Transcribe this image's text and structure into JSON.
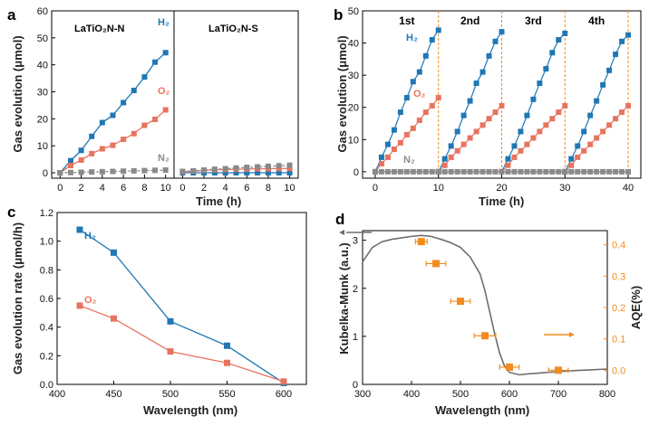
{
  "chart_data": [
    {
      "panel": "a",
      "type": "scatter",
      "xlabel": "Time (h)",
      "ylabel": "Gas evolution (μmol)",
      "ylim": [
        -2,
        60
      ],
      "yticks": [
        "0",
        "10",
        "20",
        "30",
        "40",
        "50",
        "60"
      ],
      "subpanels": [
        {
          "title": "LaTiO₂N-N",
          "title_color": "#e8735f",
          "xlim": [
            -0.8,
            10.8
          ],
          "xticks": [
            "0",
            "2",
            "4",
            "6",
            "8",
            "10"
          ],
          "series": [
            {
              "name": "H₂",
              "color": "#1f77b4",
              "x": [
                0,
                1,
                2,
                3,
                4,
                5,
                6,
                7,
                8,
                9,
                10
              ],
              "y": [
                0,
                4.5,
                8.3,
                13.5,
                18.6,
                21.3,
                26,
                30.5,
                35.5,
                41,
                44.5
              ]
            },
            {
              "name": "O₂",
              "color": "#e8735f",
              "x": [
                0,
                1,
                2,
                3,
                4,
                5,
                6,
                7,
                8,
                9,
                10
              ],
              "y": [
                0,
                2.7,
                4.7,
                7.1,
                8.9,
                10.2,
                12.4,
                14.5,
                17.6,
                19.8,
                23.3
              ]
            },
            {
              "name": "N₂",
              "color": "#8a8a8a",
              "x": [
                0,
                1,
                2,
                3,
                4,
                5,
                6,
                7,
                8,
                9,
                10
              ],
              "y": [
                0,
                0.1,
                0.2,
                0.3,
                0.4,
                0.5,
                0.6,
                0.7,
                0.8,
                0.9,
                1.0
              ]
            }
          ]
        },
        {
          "title": "LaTiO₂N-S",
          "title_color": "#5aa9a3",
          "xlim": [
            -0.8,
            10.8
          ],
          "xticks": [
            "0",
            "2",
            "4",
            "6",
            "8",
            "10"
          ],
          "series": [
            {
              "name": "H₂",
              "color": "#1f77b4",
              "x": [
                0,
                1,
                2,
                3,
                4,
                5,
                6,
                7,
                8,
                9,
                10
              ],
              "y": [
                0,
                0,
                0,
                0,
                0,
                0,
                0,
                0,
                0,
                0,
                0
              ]
            },
            {
              "name": "O₂",
              "color": "#e8735f",
              "x": [
                0,
                1,
                2,
                3,
                4,
                5,
                6,
                7,
                8,
                9,
                10
              ],
              "y": [
                0.4,
                0.6,
                0.9,
                1.1,
                1.2,
                1.3,
                1.4,
                1.5,
                1.5,
                1.6,
                1.6
              ]
            },
            {
              "name": "N₂",
              "color": "#8a8a8a",
              "x": [
                0,
                1,
                2,
                3,
                4,
                5,
                6,
                7,
                8,
                9,
                10
              ],
              "y": [
                0.5,
                0.7,
                1.0,
                1.3,
                1.5,
                1.8,
                2.0,
                2.2,
                2.4,
                2.6,
                2.8
              ]
            }
          ]
        }
      ]
    },
    {
      "panel": "b",
      "type": "scatter",
      "xlabel": "Time (h)",
      "ylabel": "Gas evolution (μmol)",
      "xlim": [
        -2,
        42
      ],
      "ylim": [
        -2,
        50
      ],
      "xticks": [
        "0",
        "10",
        "20",
        "30",
        "40"
      ],
      "yticks": [
        "0",
        "10",
        "20",
        "30",
        "40",
        "50"
      ],
      "cycle_labels": [
        "1st",
        "2nd",
        "3rd",
        "4th"
      ],
      "cycle_lines_x": [
        10,
        20,
        30,
        40
      ],
      "series_labels": [
        "H₂",
        "O₂",
        "N₂"
      ],
      "series": [
        {
          "name": "H₂",
          "color": "#1f77b4",
          "cycles": [
            [
              0,
              4.5,
              8.5,
              13,
              18.5,
              23,
              28,
              31,
              36,
              41,
              44
            ],
            [
              0,
              4,
              8,
              12.5,
              17.5,
              22,
              27.5,
              31,
              36,
              40.5,
              43.5
            ],
            [
              0,
              4,
              8,
              12.5,
              17.5,
              22.5,
              27.5,
              32,
              37,
              41,
              43
            ],
            [
              0,
              4,
              8,
              12.5,
              17.5,
              22,
              27,
              31.5,
              36.5,
              40.5,
              42.5
            ]
          ]
        },
        {
          "name": "O₂",
          "color": "#e8735f",
          "cycles": [
            [
              0,
              2.5,
              4.5,
              7,
              9,
              11.5,
              13.5,
              16,
              18.5,
              20.5,
              23
            ],
            [
              0,
              2,
              4.5,
              6.5,
              8.5,
              10.5,
              12.5,
              14.5,
              16.5,
              18.5,
              20.5
            ],
            [
              0,
              2,
              4.5,
              6.5,
              8.5,
              10.5,
              12.5,
              14.5,
              16.5,
              18.5,
              20.5
            ],
            [
              0,
              2,
              4.5,
              6.5,
              8.5,
              10.5,
              12.5,
              14.5,
              16.5,
              18.5,
              20.5
            ]
          ]
        },
        {
          "name": "N₂",
          "color": "#8a8a8a",
          "cycles": [
            [
              0,
              0,
              0,
              0,
              0,
              0,
              0,
              0,
              0,
              0,
              0
            ],
            [
              0,
              0,
              0,
              0,
              0,
              0,
              0,
              0,
              0,
              0,
              0
            ],
            [
              0,
              0,
              0,
              0,
              0,
              0,
              0,
              0,
              0,
              0,
              0
            ],
            [
              0,
              0,
              0,
              0,
              0,
              0,
              0,
              0,
              0,
              0,
              0
            ]
          ]
        }
      ]
    },
    {
      "panel": "c",
      "type": "line",
      "xlabel": "Wavelength (nm)",
      "ylabel": "Gas evolution rate (μmol/h)",
      "xlim": [
        400,
        620
      ],
      "ylim": [
        0,
        1.2
      ],
      "xticks": [
        "400",
        "450",
        "500",
        "550",
        "600"
      ],
      "yticks": [
        "0.0",
        "0.2",
        "0.4",
        "0.6",
        "0.8",
        "1.0",
        "1.2"
      ],
      "x": [
        420,
        450,
        500,
        550,
        600
      ],
      "series": [
        {
          "name": "H₂",
          "color": "#1f77b4",
          "values": [
            1.08,
            0.92,
            0.44,
            0.27,
            0.01
          ]
        },
        {
          "name": "O₂",
          "color": "#e8735f",
          "values": [
            0.55,
            0.46,
            0.23,
            0.15,
            0.02
          ]
        }
      ]
    },
    {
      "panel": "d",
      "type": "line",
      "xlabel": "Wavelength (nm)",
      "ylabel": "Kubelka-Munk (a.u.)",
      "y2label": "AQE(%)",
      "xlim": [
        300,
        800
      ],
      "ylim": [
        0,
        3.2
      ],
      "y2lim": [
        -0.045,
        0.445
      ],
      "xticks": [
        "300",
        "400",
        "500",
        "600",
        "700",
        "800"
      ],
      "yticks": [
        "0",
        "1",
        "2",
        "3"
      ],
      "y2ticks": [
        "0.0",
        "0.1",
        "0.2",
        "0.3",
        "0.4"
      ],
      "km_curve": {
        "color": "#6e6e6e",
        "x": [
          300,
          310,
          320,
          340,
          360,
          380,
          400,
          420,
          440,
          460,
          480,
          500,
          520,
          540,
          550,
          560,
          570,
          580,
          590,
          600,
          620,
          640,
          680,
          720,
          760,
          800
        ],
        "y": [
          2.55,
          2.7,
          2.85,
          2.97,
          3.02,
          3.05,
          3.08,
          3.1,
          3.08,
          3.02,
          2.95,
          2.85,
          2.65,
          2.3,
          1.95,
          1.5,
          1.05,
          0.65,
          0.38,
          0.25,
          0.2,
          0.22,
          0.25,
          0.28,
          0.3,
          0.32
        ]
      },
      "aqe": {
        "color": "#f28c1d",
        "x": [
          420,
          450,
          500,
          550,
          600,
          700
        ],
        "y": [
          0.41,
          0.34,
          0.22,
          0.11,
          0.01,
          0.0
        ],
        "xerr": [
          12,
          20,
          20,
          22,
          20,
          20
        ]
      }
    }
  ]
}
